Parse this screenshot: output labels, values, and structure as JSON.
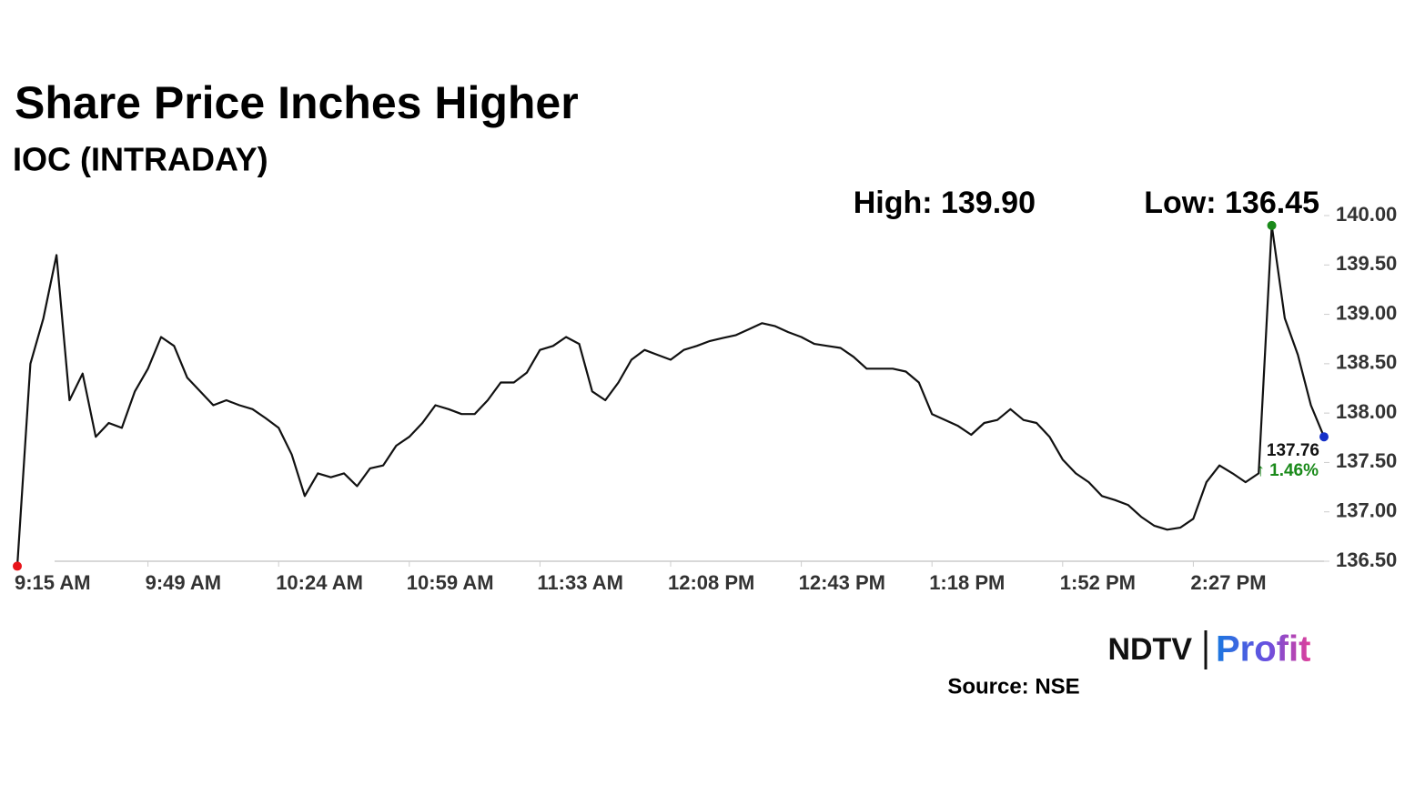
{
  "chart_data": {
    "type": "line",
    "title": "Share Price Inches Higher",
    "subtitle": "IOC (INTRADAY)",
    "high_label": "High: 139.90",
    "low_label": "Low: 136.45",
    "last_label": "137.76",
    "change_label": "↑ 1.46%",
    "source": "Source: NSE",
    "logo": {
      "brand": "NDTV",
      "product": "Profit"
    },
    "categories": [
      "9:15 AM",
      null,
      null,
      null,
      null,
      null,
      null,
      null,
      null,
      null,
      "9:49 AM",
      null,
      null,
      null,
      null,
      null,
      null,
      null,
      null,
      null,
      "10:24 AM",
      null,
      null,
      null,
      null,
      null,
      null,
      null,
      null,
      null,
      "10:59 AM",
      null,
      null,
      null,
      null,
      null,
      null,
      null,
      null,
      null,
      "11:33 AM",
      null,
      null,
      null,
      null,
      null,
      null,
      null,
      null,
      null,
      "12:08 PM",
      null,
      null,
      null,
      null,
      null,
      null,
      null,
      null,
      null,
      "12:43 PM",
      null,
      null,
      null,
      null,
      null,
      null,
      null,
      null,
      null,
      "1:18 PM",
      null,
      null,
      null,
      null,
      null,
      null,
      null,
      null,
      null,
      "1:52 PM",
      null,
      null,
      null,
      null,
      null,
      null,
      null,
      null,
      null,
      "2:27 PM",
      null,
      null,
      null,
      null,
      null,
      null,
      null,
      null,
      null,
      null
    ],
    "series": [
      {
        "name": "IOC",
        "color": "#111111",
        "values": [
          136.45,
          138.5,
          138.96,
          139.6,
          138.13,
          138.4,
          137.76,
          137.9,
          137.85,
          138.22,
          138.45,
          138.77,
          138.68,
          138.36,
          138.22,
          138.08,
          138.13,
          138.08,
          138.04,
          137.95,
          137.85,
          137.58,
          137.16,
          137.39,
          137.35,
          137.39,
          137.26,
          137.44,
          137.47,
          137.67,
          137.76,
          137.9,
          138.08,
          138.04,
          137.99,
          137.99,
          138.13,
          138.31,
          138.31,
          138.41,
          138.64,
          138.68,
          138.77,
          138.7,
          138.22,
          138.13,
          138.31,
          138.54,
          138.64,
          138.59,
          138.54,
          138.64,
          138.68,
          138.73,
          138.76,
          138.79,
          138.85,
          138.91,
          138.88,
          138.82,
          138.77,
          138.7,
          138.68,
          138.66,
          138.57,
          138.45,
          138.45,
          138.45,
          138.42,
          138.31,
          137.99,
          137.93,
          137.87,
          137.78,
          137.9,
          137.93,
          138.04,
          137.93,
          137.9,
          137.76,
          137.53,
          137.39,
          137.3,
          137.16,
          137.12,
          137.07,
          136.95,
          136.86,
          136.82,
          136.84,
          136.93,
          137.3,
          137.47,
          137.39,
          137.3,
          137.39,
          139.9,
          138.96,
          138.59,
          138.08,
          137.76
        ]
      }
    ],
    "low_color": "#e8141a",
    "high_color": "#1a8a1a",
    "last_color": "#1530c8",
    "ylim": [
      136.5,
      140.0
    ],
    "yticks": [
      {
        "value": 136.5,
        "label": "136.50"
      },
      {
        "value": 137.0,
        "label": "137.00"
      },
      {
        "value": 137.5,
        "label": "137.50"
      },
      {
        "value": 138.0,
        "label": "138.00"
      },
      {
        "value": 138.5,
        "label": "138.50"
      },
      {
        "value": 139.0,
        "label": "139.00"
      },
      {
        "value": 139.5,
        "label": "139.50"
      },
      {
        "value": 140.0,
        "label": "140.00"
      }
    ]
  }
}
